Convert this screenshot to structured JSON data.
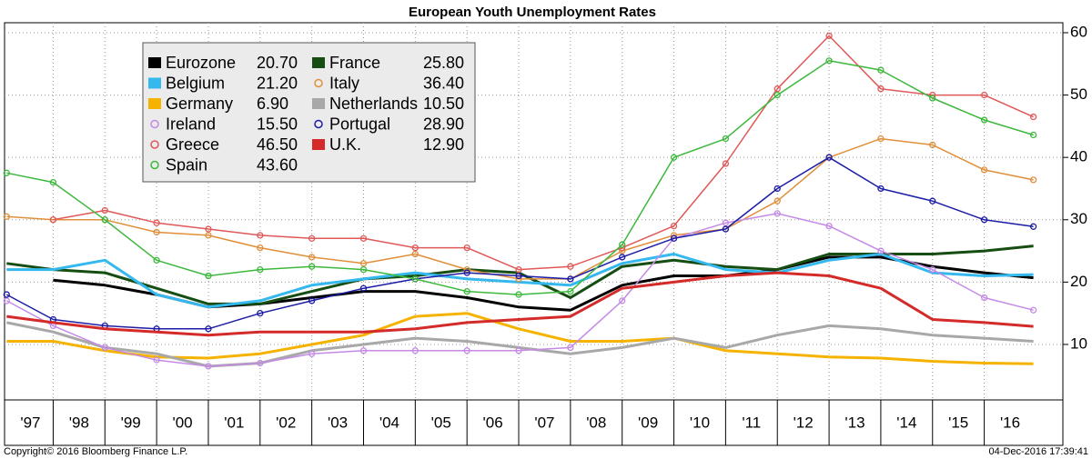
{
  "chart_data": {
    "type": "line",
    "title": "European Youth Unemployment Rates",
    "footer_left": "Copyright© 2016 Bloomberg Finance L.P.",
    "footer_right": "04-Dec-2016 17:39:41",
    "x": [
      1997.1,
      1998,
      1999,
      2000,
      2001,
      2002,
      2003,
      2004,
      2005,
      2006,
      2007,
      2008,
      2009,
      2010,
      2011,
      2012,
      2013,
      2014,
      2015,
      2016,
      2016.95
    ],
    "xlim": [
      1997.06,
      2017.52
    ],
    "xticks": [
      {
        "value": 1997,
        "label": "'97"
      },
      {
        "value": 1998,
        "label": "'98"
      },
      {
        "value": 1999,
        "label": "'99"
      },
      {
        "value": 2000,
        "label": "'00"
      },
      {
        "value": 2001,
        "label": "'01"
      },
      {
        "value": 2002,
        "label": "'02"
      },
      {
        "value": 2003,
        "label": "'03"
      },
      {
        "value": 2004,
        "label": "'04"
      },
      {
        "value": 2005,
        "label": "'05"
      },
      {
        "value": 2006,
        "label": "'06"
      },
      {
        "value": 2007,
        "label": "'07"
      },
      {
        "value": 2008,
        "label": "'08"
      },
      {
        "value": 2009,
        "label": "'09"
      },
      {
        "value": 2010,
        "label": "'10"
      },
      {
        "value": 2011,
        "label": "'11"
      },
      {
        "value": 2012,
        "label": "'12"
      },
      {
        "value": 2013,
        "label": "'13"
      },
      {
        "value": 2014,
        "label": "'14"
      },
      {
        "value": 2015,
        "label": "'15"
      },
      {
        "value": 2016,
        "label": "'16"
      }
    ],
    "ylim": [
      1.1,
      61.6
    ],
    "yticks": [
      10,
      20,
      30,
      40,
      50,
      60
    ],
    "grid": true,
    "legend": "upper left",
    "series": [
      {
        "name": "Eurozone",
        "legend_value": "20.70",
        "color": "#000000",
        "marker": "none",
        "values": [
          null,
          20.3,
          19.5,
          18,
          16,
          16.5,
          17.5,
          18.5,
          18.5,
          17.5,
          16,
          15.5,
          19.5,
          21,
          21,
          22,
          24,
          24,
          22.5,
          21.5,
          20.7
        ]
      },
      {
        "name": "France",
        "legend_value": "25.80",
        "color": "#154d12",
        "marker": "none",
        "values": [
          23,
          22,
          21.5,
          19,
          16.5,
          16.5,
          18.5,
          20.5,
          21,
          22,
          21.5,
          17.5,
          22.5,
          23.5,
          22.5,
          22,
          24.5,
          24.5,
          24.5,
          25,
          25.8
        ]
      },
      {
        "name": "Belgium",
        "legend_value": "21.20",
        "color": "#35b8ee",
        "marker": "none",
        "values": [
          22,
          22,
          23.5,
          18,
          16,
          17,
          19.5,
          20.5,
          21.5,
          20.5,
          20,
          19.5,
          23,
          24.5,
          22,
          21.5,
          23.5,
          24.5,
          21.5,
          21,
          21.2
        ]
      },
      {
        "name": "Italy",
        "legend_value": "36.40",
        "color": "#e08f3a",
        "marker": "circle",
        "values": [
          30.5,
          30,
          30,
          28,
          27.5,
          25.5,
          24,
          23,
          24.5,
          22,
          20.5,
          20.5,
          25,
          27.5,
          28.5,
          33,
          40,
          43,
          42,
          38,
          36.4
        ]
      },
      {
        "name": "Germany",
        "legend_value": "6.90",
        "color": "#f5b300",
        "marker": "none",
        "values": [
          10.5,
          10.5,
          9,
          8,
          7.8,
          8.5,
          10,
          11.5,
          14.5,
          15,
          12.5,
          10.5,
          10.5,
          11,
          9,
          8.5,
          8,
          7.8,
          7.3,
          7,
          6.9
        ]
      },
      {
        "name": "Netherlands",
        "legend_value": "10.50",
        "color": "#a8a8a8",
        "marker": "none",
        "values": [
          13.5,
          12,
          9.5,
          8.5,
          6.5,
          7,
          9,
          10,
          11,
          10.5,
          9.5,
          8.5,
          9.5,
          11,
          9.5,
          11.5,
          13,
          12.5,
          11.5,
          11,
          10.5
        ]
      },
      {
        "name": "Ireland",
        "legend_value": "15.50",
        "color": "#c48ae6",
        "marker": "circle",
        "values": [
          17,
          13,
          9.5,
          7.5,
          6.5,
          7,
          8.5,
          9,
          9,
          9,
          9,
          9.5,
          17,
          27,
          29.5,
          31,
          29,
          25,
          22,
          17.5,
          15.5
        ]
      },
      {
        "name": "Portugal",
        "legend_value": "28.90",
        "color": "#1c1ca6",
        "marker": "circle",
        "values": [
          18,
          14,
          13,
          12.5,
          12.5,
          15,
          17,
          19,
          20.5,
          21.5,
          21,
          20.5,
          24,
          27,
          28.5,
          35,
          40,
          35,
          33,
          30,
          28.9
        ]
      },
      {
        "name": "Greece",
        "legend_value": "46.50",
        "color": "#e05858",
        "marker": "circle",
        "values": [
          null,
          30,
          31.5,
          29.5,
          28.5,
          27.5,
          27,
          27,
          25.5,
          25.5,
          22,
          22.5,
          25.5,
          29,
          39,
          51,
          59.5,
          51,
          50,
          50,
          46.5
        ]
      },
      {
        "name": "U.K.",
        "legend_value": "12.90",
        "color": "#d42a2a",
        "marker": "none",
        "values": [
          14.5,
          13.5,
          12.5,
          12,
          11.5,
          12,
          12,
          12,
          12.5,
          13.5,
          14,
          14.5,
          19,
          20,
          21,
          21.5,
          21,
          19,
          14,
          13.5,
          12.9
        ]
      },
      {
        "name": "Spain",
        "legend_value": "43.60",
        "color": "#3cb83c",
        "marker": "circle",
        "values": [
          37.5,
          36,
          30,
          23.5,
          21,
          22,
          22.5,
          22,
          20.5,
          18.5,
          18,
          18.5,
          26,
          40,
          43,
          50,
          55.5,
          54,
          49.5,
          46,
          43.6
        ]
      }
    ]
  }
}
